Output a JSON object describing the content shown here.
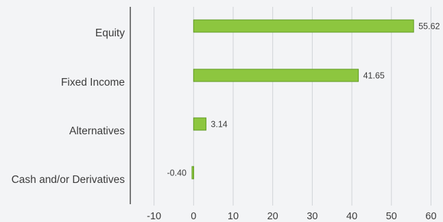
{
  "chart_data": {
    "type": "bar",
    "orientation": "horizontal",
    "categories": [
      "Equity",
      "Fixed Income",
      "Alternatives",
      "Cash and/or Derivatives"
    ],
    "values": [
      55.62,
      41.65,
      3.14,
      -0.4
    ],
    "value_labels": [
      "55.62",
      "41.65",
      "3.14",
      "-0.40"
    ],
    "xlim": [
      -16,
      62
    ],
    "x_ticks": [
      -10,
      0,
      10,
      20,
      30,
      40,
      50,
      60
    ],
    "x_tick_labels": [
      "-10",
      "0",
      "10",
      "20",
      "30",
      "40",
      "50",
      "60"
    ],
    "grid": true,
    "legend": "none",
    "bar_color": "#8dc63f",
    "bar_edge_color": "#5e9a22",
    "grid_color": "#cfd2d6",
    "axis_color": "#222222",
    "background": "#f3f4f6"
  }
}
